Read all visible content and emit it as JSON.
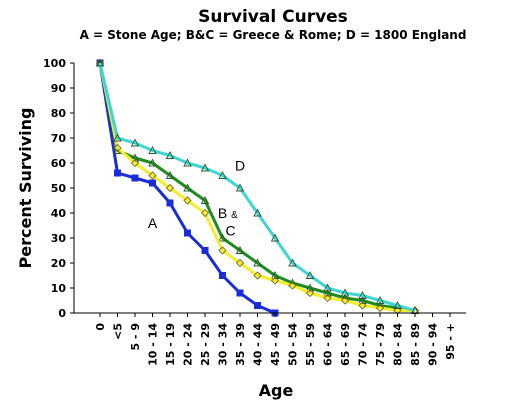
{
  "chart_data": {
    "type": "line",
    "title": "Survival Curves",
    "subtitle": "A = Stone Age; B&C = Greece & Rome; D = 1800 England",
    "xlabel": "Age",
    "ylabel": "Percent Surviving",
    "categories": [
      "0",
      "<5",
      "5 - 9",
      "10 - 14",
      "15 - 19",
      "20 - 24",
      "25 - 29",
      "30 - 34",
      "35 - 39",
      "40 - 44",
      "45 - 49",
      "50 - 54",
      "55 - 59",
      "60 - 64",
      "65 - 69",
      "70 - 74",
      "75 - 79",
      "80 - 84",
      "85 - 89",
      "90 - 94",
      "95 - +"
    ],
    "ylim": [
      0,
      100
    ],
    "yticks": [
      "0",
      "10",
      "20",
      "30",
      "40",
      "50",
      "60",
      "70",
      "80",
      "90",
      "100"
    ],
    "grid": false,
    "legend": "none",
    "annotations": [
      {
        "text": "A",
        "x": "10 - 14",
        "y": 34,
        "series": "A"
      },
      {
        "text": "B",
        "x": "30 - 34",
        "y": 38,
        "series": "B"
      },
      {
        "text": "&",
        "x": "30 - 34",
        "y": 38,
        "series": "B"
      },
      {
        "text": "C",
        "x": "30 - 34",
        "y": 31,
        "series": "C"
      },
      {
        "text": "D",
        "x": "35 - 39",
        "y": 57,
        "series": "D"
      }
    ],
    "series": [
      {
        "key": "A",
        "color": "#1a2bd8",
        "marker": "square",
        "values": [
          100,
          56,
          54,
          52,
          44,
          32,
          25,
          15,
          8,
          3,
          0,
          null,
          null,
          null,
          null,
          null,
          null,
          null,
          null,
          null,
          null
        ]
      },
      {
        "key": "B",
        "color": "#1e8c1e",
        "marker": "triangle",
        "values": [
          100,
          65,
          62,
          60,
          55,
          50,
          45,
          30,
          25,
          20,
          15,
          12,
          10,
          8,
          6,
          5,
          3,
          2,
          1,
          null,
          null
        ]
      },
      {
        "key": "C",
        "color": "#f2ee2a",
        "marker": "diamond",
        "values": [
          100,
          66,
          60,
          55,
          50,
          45,
          40,
          25,
          20,
          15,
          13,
          11,
          8,
          6,
          5,
          3,
          2,
          1,
          1,
          null,
          null
        ]
      },
      {
        "key": "D",
        "color": "#3ed5d5",
        "marker": "triangle",
        "values": [
          100,
          70,
          68,
          65,
          63,
          60,
          58,
          55,
          50,
          40,
          30,
          20,
          15,
          10,
          8,
          7,
          5,
          3,
          1,
          null,
          null
        ]
      }
    ]
  }
}
